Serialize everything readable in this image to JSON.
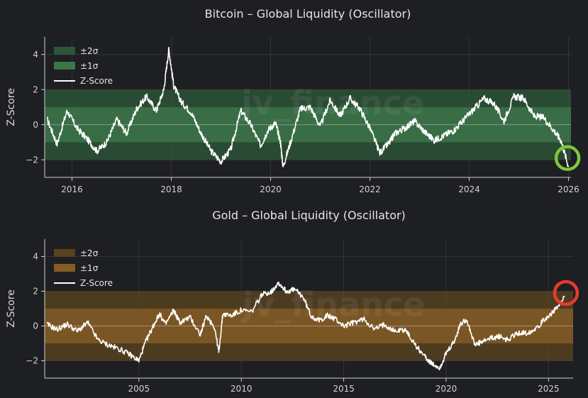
{
  "chart_data": [
    {
      "type": "line",
      "title": "Bitcoin – Global Liquidity (Oscillator)",
      "ylabel": "Z-Score",
      "xlabel": "",
      "xlim": [
        2015.45,
        2026.05
      ],
      "ylim": [
        -3,
        5
      ],
      "xticks": [
        2016,
        2018,
        2020,
        2022,
        2024,
        2026
      ],
      "yticks": [
        -2,
        0,
        2,
        4
      ],
      "legend": {
        "placement": "top-left",
        "entries": [
          "±2σ",
          "±1σ",
          "Z-Score"
        ]
      },
      "bands": [
        {
          "label": "±2σ",
          "range": [
            -2,
            2
          ],
          "color": "#2d5a39"
        },
        {
          "label": "±1σ",
          "range": [
            -1,
            1
          ],
          "color": "#3d7a4c"
        }
      ],
      "watermark": "jv_finance",
      "highlight": {
        "x": 2025.98,
        "y": -1.9,
        "color": "#7fc63c"
      },
      "series": [
        {
          "name": "Z-Score",
          "color": "#ffffff",
          "x": [
            2015.5,
            2015.7,
            2015.9,
            2016.1,
            2016.3,
            2016.5,
            2016.7,
            2016.9,
            2017.1,
            2017.3,
            2017.5,
            2017.7,
            2017.85,
            2017.95,
            2018.05,
            2018.2,
            2018.4,
            2018.6,
            2018.8,
            2019.0,
            2019.2,
            2019.4,
            2019.6,
            2019.8,
            2019.95,
            2020.1,
            2020.2,
            2020.25,
            2020.4,
            2020.6,
            2020.8,
            2021.0,
            2021.2,
            2021.4,
            2021.6,
            2021.8,
            2022.0,
            2022.2,
            2022.4,
            2022.5,
            2022.7,
            2022.9,
            2023.1,
            2023.3,
            2023.5,
            2023.7,
            2023.9,
            2024.1,
            2024.3,
            2024.5,
            2024.7,
            2024.9,
            2025.1,
            2025.3,
            2025.5,
            2025.7,
            2025.85,
            2026.0
          ],
          "y": [
            0.3,
            -1.1,
            0.8,
            -0.2,
            -0.8,
            -1.5,
            -1.0,
            0.3,
            -0.5,
            0.9,
            1.6,
            0.8,
            2.0,
            4.3,
            2.2,
            1.3,
            0.7,
            -0.5,
            -1.5,
            -2.1,
            -1.4,
            0.8,
            0.0,
            -1.2,
            -0.3,
            0.1,
            -1.0,
            -2.4,
            -1.0,
            0.9,
            1.0,
            -0.1,
            1.4,
            0.5,
            1.5,
            0.9,
            -0.2,
            -1.6,
            -1.0,
            -0.5,
            -0.2,
            0.2,
            -0.4,
            -0.9,
            -0.6,
            -0.3,
            0.3,
            0.9,
            1.5,
            1.2,
            0.2,
            1.6,
            1.5,
            0.5,
            0.4,
            -0.3,
            -0.9,
            -2.4
          ]
        }
      ]
    },
    {
      "type": "line",
      "title": "Gold – Global Liquidity (Oscillator)",
      "ylabel": "Z-Score",
      "xlabel": "",
      "xlim": [
        2000.4,
        2026.2
      ],
      "ylim": [
        -3,
        5
      ],
      "xticks": [
        2005,
        2010,
        2015,
        2020,
        2025
      ],
      "yticks": [
        -2,
        0,
        2,
        4
      ],
      "legend": {
        "placement": "top-left",
        "entries": [
          "±2σ",
          "±1σ",
          "Z-Score"
        ]
      },
      "bands": [
        {
          "label": "±2σ",
          "range": [
            -2,
            2
          ],
          "color": "#5e4520"
        },
        {
          "label": "±1σ",
          "range": [
            -1,
            1
          ],
          "color": "#8a6025"
        }
      ],
      "watermark": "jv_finance",
      "highlight": {
        "x": 2025.85,
        "y": 1.9,
        "color": "#e63b2e"
      },
      "series": [
        {
          "name": "Z-Score",
          "color": "#ffffff",
          "x": [
            2000.5,
            2001.0,
            2001.5,
            2002.0,
            2002.5,
            2003.0,
            2003.5,
            2004.0,
            2004.5,
            2005.0,
            2005.3,
            2005.7,
            2006.0,
            2006.3,
            2006.7,
            2007.0,
            2007.5,
            2008.0,
            2008.3,
            2008.7,
            2008.9,
            2009.1,
            2009.5,
            2010.0,
            2010.5,
            2011.0,
            2011.5,
            2011.8,
            2012.2,
            2012.6,
            2013.0,
            2013.4,
            2013.8,
            2014.2,
            2014.6,
            2015.0,
            2015.5,
            2016.0,
            2016.5,
            2017.0,
            2017.5,
            2018.0,
            2018.5,
            2019.0,
            2019.3,
            2019.7,
            2020.0,
            2020.4,
            2020.7,
            2021.0,
            2021.4,
            2021.8,
            2022.2,
            2022.6,
            2023.0,
            2023.5,
            2024.0,
            2024.5,
            2025.0,
            2025.4,
            2025.8
          ],
          "y": [
            0.1,
            -0.2,
            0.1,
            -0.3,
            0.2,
            -0.8,
            -1.1,
            -1.3,
            -1.6,
            -2.0,
            -1.0,
            0.0,
            0.7,
            0.1,
            0.9,
            0.2,
            0.5,
            -0.5,
            0.6,
            -0.1,
            -1.5,
            0.7,
            0.6,
            0.9,
            0.8,
            1.8,
            2.0,
            2.5,
            2.0,
            2.1,
            1.7,
            0.6,
            0.3,
            0.6,
            0.4,
            0.0,
            0.2,
            0.4,
            -0.2,
            0.1,
            -0.3,
            -0.2,
            -1.1,
            -1.8,
            -2.2,
            -2.4,
            -1.6,
            -0.9,
            0.1,
            0.4,
            -1.1,
            -0.9,
            -0.7,
            -0.6,
            -0.8,
            -0.4,
            -0.4,
            0.0,
            0.6,
            1.0,
            1.7
          ]
        }
      ]
    }
  ]
}
